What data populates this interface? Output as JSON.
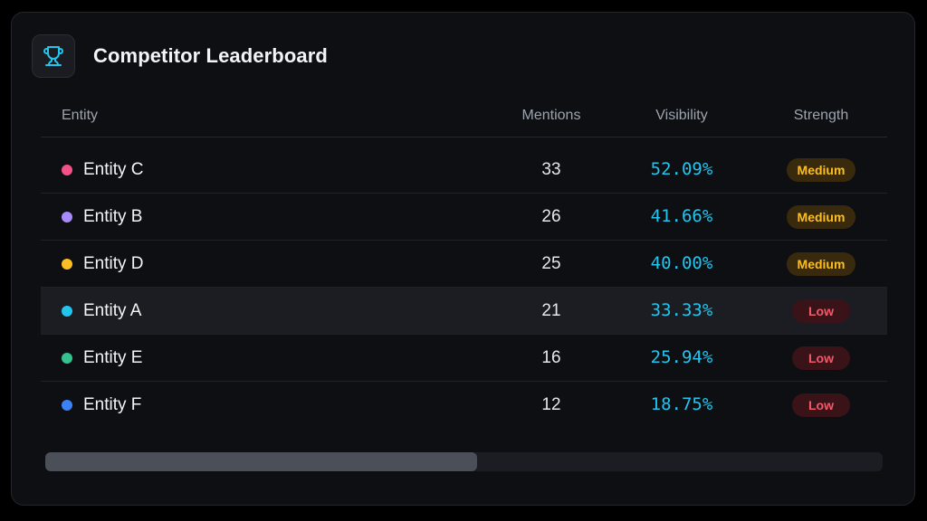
{
  "header": {
    "title": "Competitor Leaderboard",
    "icon": "trophy-icon",
    "icon_color": "#22c5ee"
  },
  "columns": {
    "entity": "Entity",
    "mentions": "Mentions",
    "visibility": "Visibility",
    "strength": "Strength"
  },
  "rows": [
    {
      "name": "Entity C",
      "color": "#f25287",
      "mentions": "33",
      "visibility": "52.09%",
      "strength": "Medium",
      "level": "medium",
      "highlight": false
    },
    {
      "name": "Entity B",
      "color": "#a78bfa",
      "mentions": "26",
      "visibility": "41.66%",
      "strength": "Medium",
      "level": "medium",
      "highlight": false
    },
    {
      "name": "Entity D",
      "color": "#fbbf24",
      "mentions": "25",
      "visibility": "40.00%",
      "strength": "Medium",
      "level": "medium",
      "highlight": false
    },
    {
      "name": "Entity A",
      "color": "#22c5ee",
      "mentions": "21",
      "visibility": "33.33%",
      "strength": "Low",
      "level": "low",
      "highlight": true
    },
    {
      "name": "Entity E",
      "color": "#34c38f",
      "mentions": "16",
      "visibility": "25.94%",
      "strength": "Low",
      "level": "low",
      "highlight": false
    },
    {
      "name": "Entity F",
      "color": "#3b82f6",
      "mentions": "12",
      "visibility": "18.75%",
      "strength": "Low",
      "level": "low",
      "highlight": false
    }
  ],
  "scrollbar": {
    "thumb_fraction": 0.516
  }
}
